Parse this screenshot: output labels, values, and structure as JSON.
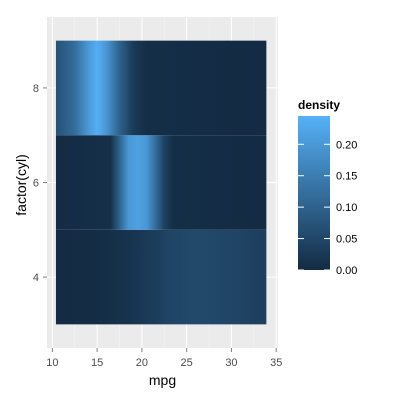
{
  "chart_data": {
    "type": "heatmap",
    "title": "",
    "xlabel": "mpg",
    "ylabel": "factor(cyl)",
    "x_ticks": [
      10,
      15,
      20,
      25,
      30,
      35
    ],
    "y_ticks": [
      4,
      6,
      8
    ],
    "xlim": [
      9.4,
      35.2
    ],
    "ylim": [
      2.5,
      9.5
    ],
    "grid": true,
    "legend": {
      "title": "density",
      "position": "right",
      "breaks": [
        0.0,
        0.05,
        0.1,
        0.15,
        0.2
      ],
      "break_labels": [
        "0.00",
        "0.05",
        "0.10",
        "0.15",
        "0.20"
      ],
      "range": [
        0,
        0.245
      ],
      "low_color": "#132b43",
      "high_color": "#56b1f7"
    },
    "panel_background": "#ebebeb",
    "rows": [
      {
        "category": "4",
        "y_range": [
          3.0,
          5.0
        ],
        "x_range": [
          10.4,
          33.9
        ],
        "profile": [
          {
            "x": 10.4,
            "density": 0.0
          },
          {
            "x": 15.0,
            "density": 0.003
          },
          {
            "x": 18.0,
            "density": 0.012
          },
          {
            "x": 21.0,
            "density": 0.03
          },
          {
            "x": 23.0,
            "density": 0.045
          },
          {
            "x": 26.0,
            "density": 0.055
          },
          {
            "x": 28.0,
            "density": 0.052
          },
          {
            "x": 30.5,
            "density": 0.045
          },
          {
            "x": 33.9,
            "density": 0.035
          }
        ]
      },
      {
        "category": "6",
        "y_range": [
          5.0,
          7.0
        ],
        "x_range": [
          10.4,
          33.9
        ],
        "profile": [
          {
            "x": 10.4,
            "density": 0.0
          },
          {
            "x": 16.5,
            "density": 0.01
          },
          {
            "x": 17.5,
            "density": 0.1
          },
          {
            "x": 18.5,
            "density": 0.2
          },
          {
            "x": 19.5,
            "density": 0.215
          },
          {
            "x": 20.5,
            "density": 0.2
          },
          {
            "x": 21.5,
            "density": 0.12
          },
          {
            "x": 22.5,
            "density": 0.04
          },
          {
            "x": 23.5,
            "density": 0.005
          },
          {
            "x": 33.9,
            "density": 0.0
          }
        ]
      },
      {
        "category": "8",
        "y_range": [
          7.0,
          9.0
        ],
        "x_range": [
          10.4,
          33.9
        ],
        "profile": [
          {
            "x": 10.4,
            "density": 0.07
          },
          {
            "x": 12.5,
            "density": 0.12
          },
          {
            "x": 14.0,
            "density": 0.2
          },
          {
            "x": 15.0,
            "density": 0.24
          },
          {
            "x": 16.0,
            "density": 0.2
          },
          {
            "x": 17.5,
            "density": 0.1
          },
          {
            "x": 19.0,
            "density": 0.03
          },
          {
            "x": 20.5,
            "density": 0.005
          },
          {
            "x": 33.9,
            "density": 0.0
          }
        ]
      }
    ]
  }
}
